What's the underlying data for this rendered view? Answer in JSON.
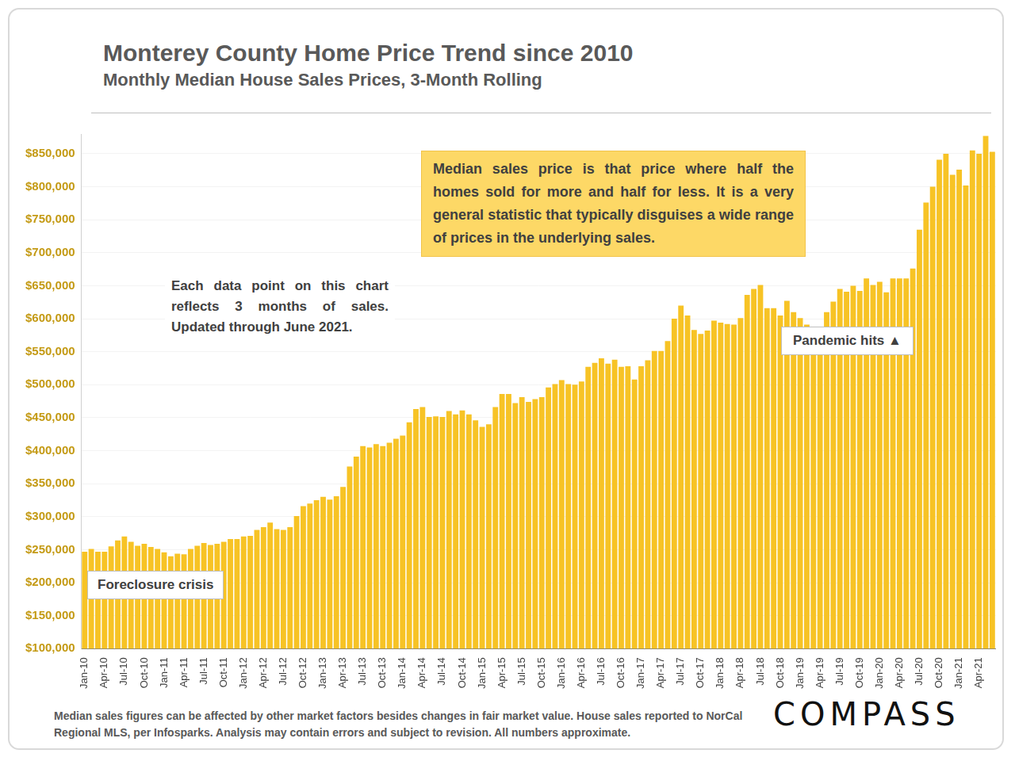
{
  "chart_data": {
    "type": "bar",
    "title": "Monterey County Home Price Trend since 2010",
    "subtitle": "Monthly Median House Sales Prices, 3-Month Rolling",
    "categories": [
      "Jan-10",
      null,
      null,
      "Apr-10",
      null,
      null,
      "Jul-10",
      null,
      null,
      "Oct-10",
      null,
      null,
      "Jan-11",
      null,
      null,
      "Apr-11",
      null,
      null,
      "Jul-11",
      null,
      null,
      "Oct-11",
      null,
      null,
      "Jan-12",
      null,
      null,
      "Apr-12",
      null,
      null,
      "Jul-12",
      null,
      null,
      "Oct-12",
      null,
      null,
      "Jan-13",
      null,
      null,
      "Apr-13",
      null,
      null,
      "Jul-13",
      null,
      null,
      "Oct-13",
      null,
      null,
      "Jan-14",
      null,
      null,
      "Apr-14",
      null,
      null,
      "Jul-14",
      null,
      null,
      "Oct-14",
      null,
      null,
      "Jan-15",
      null,
      null,
      "Apr-15",
      null,
      null,
      "Jul-15",
      null,
      null,
      "Oct-15",
      null,
      null,
      "Jan-16",
      null,
      null,
      "Apr-16",
      null,
      null,
      "Jul-16",
      null,
      null,
      "Oct-16",
      null,
      null,
      "Jan-17",
      null,
      null,
      "Apr-17",
      null,
      null,
      "Jul-17",
      null,
      null,
      "Oct-17",
      null,
      null,
      "Jan-18",
      null,
      null,
      "Apr-18",
      null,
      null,
      "Jul-18",
      null,
      null,
      "Oct-18",
      null,
      null,
      "Jan-19",
      null,
      null,
      "Apr-19",
      null,
      null,
      "Jul-19",
      null,
      null,
      "Oct-19",
      null,
      null,
      "Jan-20",
      null,
      null,
      "Apr-20",
      null,
      null,
      "Jul-20",
      null,
      null,
      "Oct-20",
      null,
      null,
      "Jan-21",
      null,
      null,
      "Apr-21",
      null,
      null
    ],
    "values": [
      247000,
      251000,
      247000,
      247000,
      255000,
      264000,
      270000,
      262000,
      256000,
      259000,
      254000,
      251000,
      246000,
      240000,
      244000,
      243000,
      251000,
      256000,
      260000,
      257000,
      259000,
      262000,
      266000,
      266000,
      270000,
      271000,
      280000,
      284000,
      291000,
      281000,
      280000,
      284000,
      301000,
      316000,
      320000,
      325000,
      330000,
      326000,
      331000,
      345000,
      376000,
      391000,
      407000,
      405000,
      410000,
      407000,
      412000,
      418000,
      423000,
      443000,
      463000,
      466000,
      451000,
      452000,
      451000,
      460000,
      455000,
      461000,
      455000,
      446000,
      436000,
      440000,
      466000,
      486000,
      486000,
      472000,
      481000,
      474000,
      478000,
      481000,
      496000,
      501000,
      507000,
      501000,
      500000,
      505000,
      527000,
      533000,
      540000,
      532000,
      538000,
      527000,
      528000,
      508000,
      528000,
      537000,
      551000,
      551000,
      566000,
      600000,
      620000,
      605000,
      583000,
      577000,
      582000,
      597000,
      594000,
      592000,
      591000,
      601000,
      636000,
      645000,
      651000,
      616000,
      616000,
      605000,
      627000,
      610000,
      601000,
      591000,
      582000,
      586000,
      610000,
      626000,
      645000,
      641000,
      650000,
      642000,
      661000,
      651000,
      656000,
      640000,
      661000,
      661000,
      661000,
      676000,
      735000,
      776000,
      800000,
      841000,
      850000,
      818000,
      826000,
      802000,
      855000,
      850000,
      877000,
      853000
    ],
    "color": "#f7c325",
    "ylim": [
      100000,
      880000
    ],
    "yticks": [
      {
        "value": 100000,
        "label": "$100,000"
      },
      {
        "value": 150000,
        "label": "$150,000"
      },
      {
        "value": 200000,
        "label": "$200,000"
      },
      {
        "value": 250000,
        "label": "$250,000"
      },
      {
        "value": 300000,
        "label": "$300,000"
      },
      {
        "value": 350000,
        "label": "$350,000"
      },
      {
        "value": 400000,
        "label": "$400,000"
      },
      {
        "value": 450000,
        "label": "$450,000"
      },
      {
        "value": 500000,
        "label": "$500,000"
      },
      {
        "value": 550000,
        "label": "$550,000"
      },
      {
        "value": 600000,
        "label": "$600,000"
      },
      {
        "value": 650000,
        "label": "$650,000"
      },
      {
        "value": 700000,
        "label": "$700,000"
      },
      {
        "value": 750000,
        "label": "$750,000"
      },
      {
        "value": 800000,
        "label": "$800,000"
      },
      {
        "value": 850000,
        "label": "$850,000"
      }
    ],
    "grid": true,
    "annotations": [
      "Median sales price is that price where half the homes sold for more and half for less. It is a very general statistic that typically disguises a wide range of prices in the underlying sales.",
      "Each data point on this chart reflects 3 months of sales. Updated through June 2021.",
      "Pandemic hits ▲",
      "Foreclosure crisis"
    ],
    "footnote": "Median sales figures can be affected by other market factors besides changes in fair market value. House sales reported to NorCal Regional MLS, per Infosparks. Analysis may contain errors and subject to revision. All numbers approximate.",
    "logo": "COMPASS"
  }
}
